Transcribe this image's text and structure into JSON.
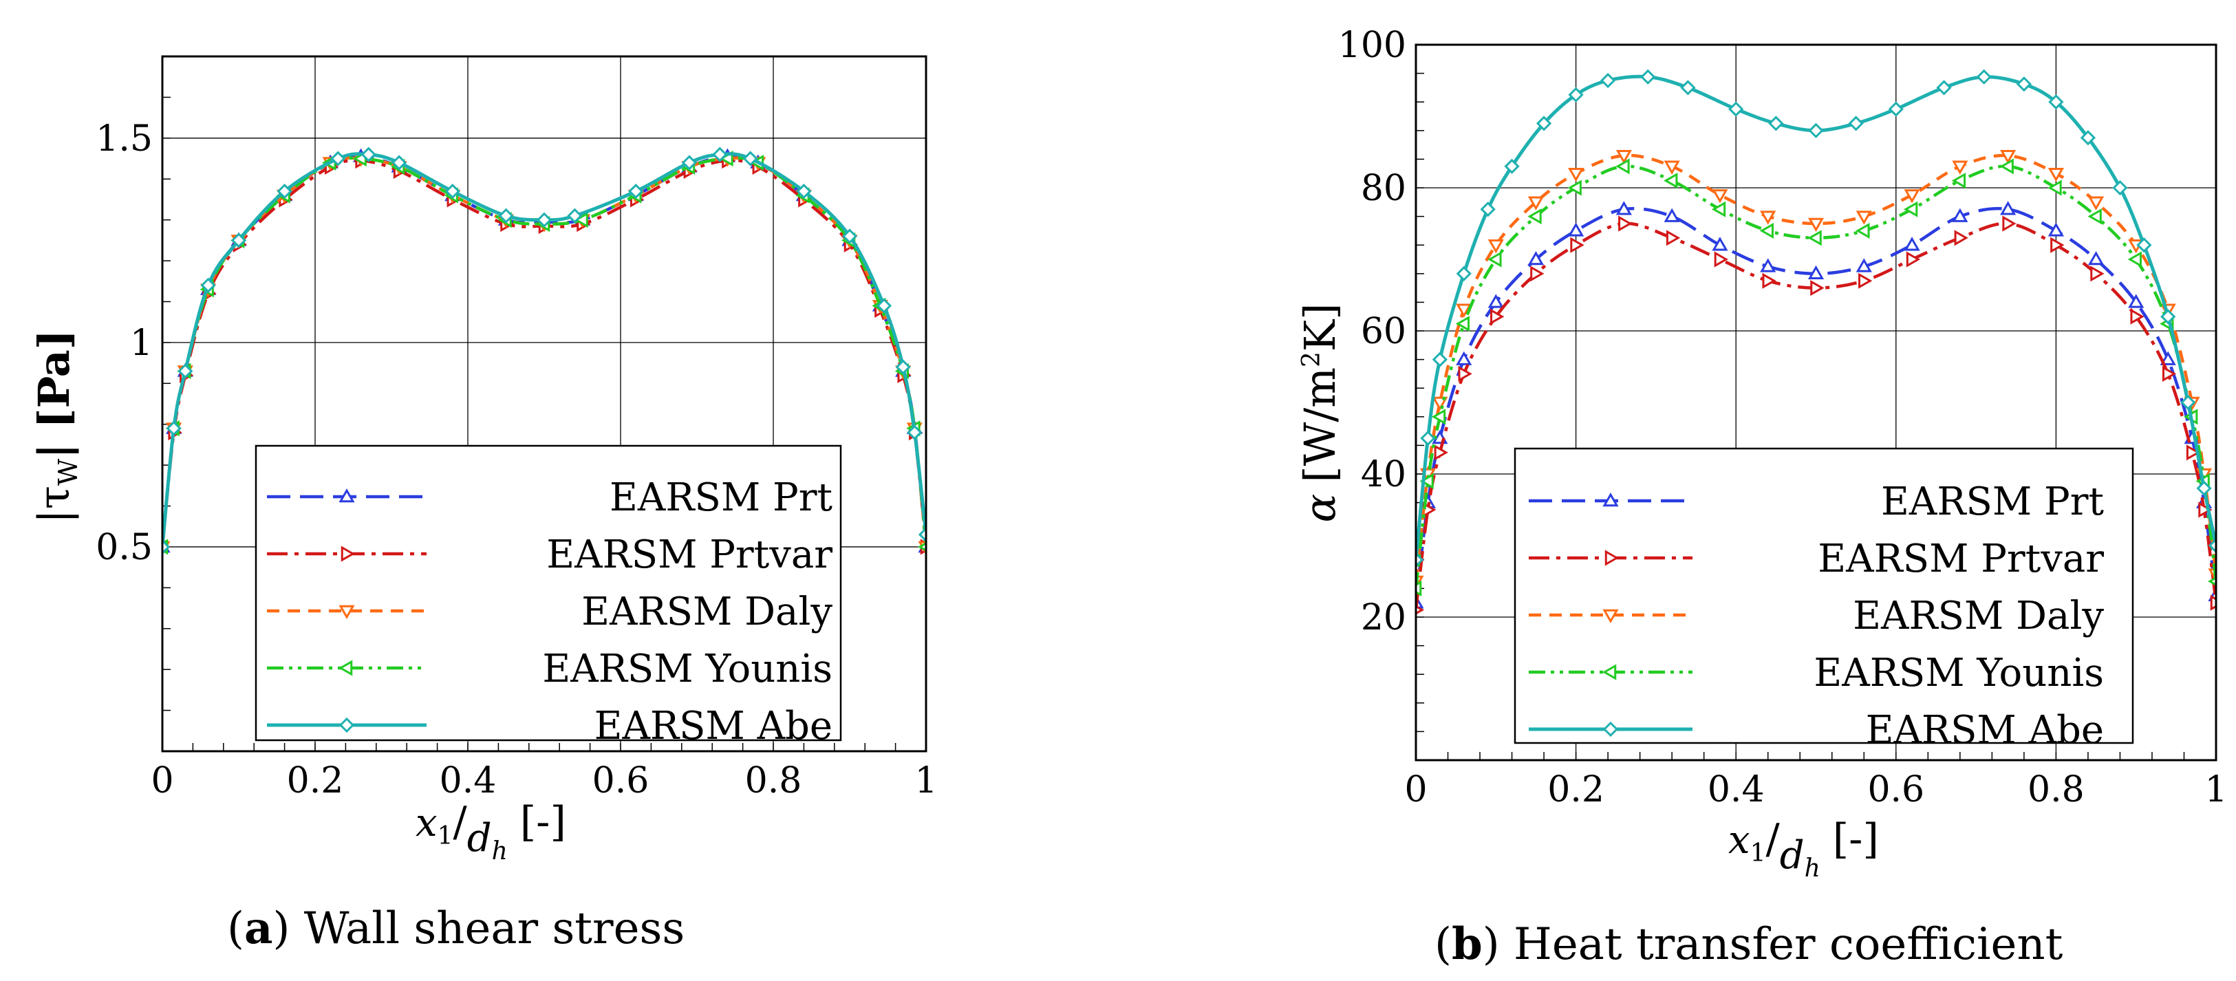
{
  "chart_data": [
    {
      "type": "line",
      "panel": "a",
      "caption_tag": "a",
      "caption_text": " Wall shear stress",
      "ylabel": "|τ_W| [Pa]",
      "ylabel_text": "|τ",
      "ylabel_sub": "W",
      "ylabel_unit": "| [Pa]",
      "xlabel_var": "x",
      "xlabel_sub": "1",
      "xlabel_den": "d",
      "xlabel_den_sub": "h",
      "xlabel_unit": "[-]",
      "xlim": [
        0,
        1
      ],
      "ylim": [
        0,
        1.7
      ],
      "xticks": [
        0,
        0.2,
        0.4,
        0.6,
        0.8,
        1
      ],
      "xtick_labels": [
        "0",
        "0.2",
        "0.4",
        "0.6",
        "0.8",
        "1"
      ],
      "yticks": [
        0.5,
        1,
        1.5
      ],
      "ytick_labels": [
        "0.5",
        "1",
        "1.5"
      ],
      "legend_position": "bottom-right",
      "series": [
        {
          "name": "EARSM Prt",
          "color": "#2b3de0",
          "dash": "dash",
          "marker": "triangle-up",
          "x": [
            0,
            0.015,
            0.03,
            0.06,
            0.1,
            0.16,
            0.22,
            0.26,
            0.31,
            0.38,
            0.45,
            0.5,
            0.55,
            0.62,
            0.69,
            0.74,
            0.78,
            0.84,
            0.9,
            0.94,
            0.97,
            0.985,
            1
          ],
          "y": [
            0.5,
            0.79,
            0.93,
            1.13,
            1.25,
            1.36,
            1.44,
            1.455,
            1.43,
            1.36,
            1.3,
            1.295,
            1.3,
            1.36,
            1.43,
            1.455,
            1.44,
            1.36,
            1.25,
            1.09,
            0.93,
            0.79,
            0.5
          ]
        },
        {
          "name": "EARSM Prtvar",
          "color": "#d31818",
          "dash": "dashdot",
          "marker": "triangle-right",
          "x": [
            0,
            0.015,
            0.03,
            0.06,
            0.1,
            0.16,
            0.22,
            0.26,
            0.31,
            0.38,
            0.45,
            0.5,
            0.55,
            0.62,
            0.69,
            0.74,
            0.78,
            0.84,
            0.9,
            0.94,
            0.97,
            0.985,
            1
          ],
          "y": [
            0.5,
            0.78,
            0.92,
            1.12,
            1.24,
            1.35,
            1.43,
            1.445,
            1.42,
            1.35,
            1.29,
            1.285,
            1.29,
            1.35,
            1.42,
            1.445,
            1.43,
            1.35,
            1.24,
            1.08,
            0.92,
            0.78,
            0.5
          ]
        },
        {
          "name": "EARSM Daly",
          "color": "#ff6a13",
          "dash": "shortdash",
          "marker": "triangle-down",
          "x": [
            0,
            0.015,
            0.03,
            0.06,
            0.1,
            0.16,
            0.22,
            0.26,
            0.31,
            0.38,
            0.45,
            0.5,
            0.55,
            0.62,
            0.69,
            0.74,
            0.78,
            0.84,
            0.9,
            0.94,
            0.97,
            0.985,
            1
          ],
          "y": [
            0.5,
            0.79,
            0.93,
            1.13,
            1.25,
            1.36,
            1.44,
            1.45,
            1.43,
            1.36,
            1.3,
            1.29,
            1.3,
            1.36,
            1.43,
            1.45,
            1.44,
            1.36,
            1.25,
            1.09,
            0.93,
            0.79,
            0.5
          ]
        },
        {
          "name": "EARSM Younis",
          "color": "#22cc22",
          "dash": "dashdotdot",
          "marker": "triangle-left",
          "x": [
            0,
            0.015,
            0.03,
            0.06,
            0.1,
            0.16,
            0.22,
            0.26,
            0.31,
            0.38,
            0.45,
            0.5,
            0.55,
            0.62,
            0.69,
            0.74,
            0.78,
            0.84,
            0.9,
            0.94,
            0.97,
            0.985,
            1
          ],
          "y": [
            0.5,
            0.79,
            0.93,
            1.13,
            1.25,
            1.36,
            1.44,
            1.45,
            1.43,
            1.36,
            1.3,
            1.29,
            1.3,
            1.36,
            1.43,
            1.45,
            1.44,
            1.36,
            1.25,
            1.09,
            0.93,
            0.79,
            0.5
          ]
        },
        {
          "name": "EARSM Abe",
          "color": "#1fb0b0",
          "dash": "solid",
          "marker": "diamond",
          "x": [
            0,
            0.015,
            0.03,
            0.06,
            0.1,
            0.16,
            0.23,
            0.27,
            0.31,
            0.38,
            0.45,
            0.5,
            0.54,
            0.62,
            0.69,
            0.73,
            0.77,
            0.84,
            0.9,
            0.945,
            0.97,
            0.985,
            1
          ],
          "y": [
            0.5,
            0.79,
            0.93,
            1.14,
            1.25,
            1.37,
            1.45,
            1.46,
            1.44,
            1.37,
            1.31,
            1.3,
            1.31,
            1.37,
            1.44,
            1.46,
            1.45,
            1.37,
            1.26,
            1.09,
            0.94,
            0.78,
            0.53
          ]
        }
      ]
    },
    {
      "type": "line",
      "panel": "b",
      "caption_tag": "b",
      "caption_text": " Heat transfer coefficient",
      "ylabel": "α [W/m²K]",
      "ylabel_text": "α",
      "ylabel_unit": "W/m",
      "ylabel_unit_sup": "2",
      "ylabel_unit_end": "K",
      "xlabel_var": "x",
      "xlabel_sub": "1",
      "xlabel_den": "d",
      "xlabel_den_sub": "h",
      "xlabel_unit": "[-]",
      "xlim": [
        0,
        1
      ],
      "ylim": [
        0,
        100
      ],
      "xticks": [
        0,
        0.2,
        0.4,
        0.6,
        0.8,
        1
      ],
      "xtick_labels": [
        "0",
        "0.2",
        "0.4",
        "0.6",
        "0.8",
        "1"
      ],
      "yticks": [
        20,
        40,
        60,
        80,
        100
      ],
      "ytick_labels": [
        "20",
        "40",
        "60",
        "80",
        "100"
      ],
      "legend_position": "bottom-right",
      "series": [
        {
          "name": "EARSM Prt",
          "color": "#2b3de0",
          "dash": "dash",
          "marker": "triangle-up",
          "x": [
            0,
            0.015,
            0.03,
            0.06,
            0.1,
            0.15,
            0.2,
            0.26,
            0.32,
            0.38,
            0.44,
            0.5,
            0.56,
            0.62,
            0.68,
            0.74,
            0.8,
            0.85,
            0.9,
            0.94,
            0.97,
            0.985,
            1
          ],
          "y": [
            22,
            36,
            45,
            56,
            64,
            70,
            74,
            77,
            76,
            72,
            69,
            68,
            69,
            72,
            76,
            77,
            74,
            70,
            64,
            56,
            45,
            36,
            23
          ]
        },
        {
          "name": "EARSM Prtvar",
          "color": "#d31818",
          "dash": "dashdot",
          "marker": "triangle-right",
          "x": [
            0,
            0.015,
            0.03,
            0.06,
            0.1,
            0.15,
            0.2,
            0.26,
            0.32,
            0.38,
            0.44,
            0.5,
            0.56,
            0.62,
            0.68,
            0.74,
            0.8,
            0.85,
            0.9,
            0.94,
            0.97,
            0.985,
            1
          ],
          "y": [
            21,
            35,
            43,
            54,
            62,
            68,
            72,
            75,
            73,
            70,
            67,
            66,
            67,
            70,
            73,
            75,
            72,
            68,
            62,
            54,
            43,
            35,
            22
          ]
        },
        {
          "name": "EARSM Daly",
          "color": "#ff6a13",
          "dash": "shortdash",
          "marker": "triangle-down",
          "x": [
            0,
            0.015,
            0.03,
            0.06,
            0.1,
            0.15,
            0.2,
            0.26,
            0.32,
            0.38,
            0.44,
            0.5,
            0.56,
            0.62,
            0.68,
            0.74,
            0.8,
            0.85,
            0.9,
            0.94,
            0.97,
            0.985,
            1
          ],
          "y": [
            25,
            40,
            50,
            63,
            72,
            78,
            82,
            84.5,
            83,
            79,
            76,
            75,
            76,
            79,
            83,
            84.5,
            82,
            78,
            72,
            63,
            50,
            40,
            26
          ]
        },
        {
          "name": "EARSM Younis",
          "color": "#22cc22",
          "dash": "dashdotdot",
          "marker": "triangle-left",
          "x": [
            0,
            0.015,
            0.03,
            0.06,
            0.1,
            0.15,
            0.2,
            0.26,
            0.32,
            0.38,
            0.44,
            0.5,
            0.56,
            0.62,
            0.68,
            0.74,
            0.8,
            0.85,
            0.9,
            0.94,
            0.97,
            0.985,
            1
          ],
          "y": [
            24,
            39,
            48,
            61,
            70,
            76,
            80,
            83,
            81,
            77,
            74,
            73,
            74,
            77,
            81,
            83,
            80,
            76,
            70,
            61,
            48,
            39,
            25
          ]
        },
        {
          "name": "EARSM Abe",
          "color": "#1fb0b0",
          "dash": "solid",
          "marker": "diamond",
          "x": [
            0,
            0.015,
            0.03,
            0.06,
            0.09,
            0.12,
            0.16,
            0.2,
            0.24,
            0.29,
            0.34,
            0.4,
            0.45,
            0.5,
            0.55,
            0.6,
            0.66,
            0.71,
            0.76,
            0.8,
            0.84,
            0.88,
            0.91,
            0.94,
            0.965,
            0.985,
            1
          ],
          "y": [
            28,
            45,
            56,
            68,
            77,
            83,
            89,
            93,
            95,
            95.5,
            94,
            91,
            89,
            88,
            89,
            91,
            94,
            95.5,
            94.5,
            92,
            87,
            80,
            72,
            62,
            50,
            38,
            30
          ]
        }
      ]
    }
  ]
}
